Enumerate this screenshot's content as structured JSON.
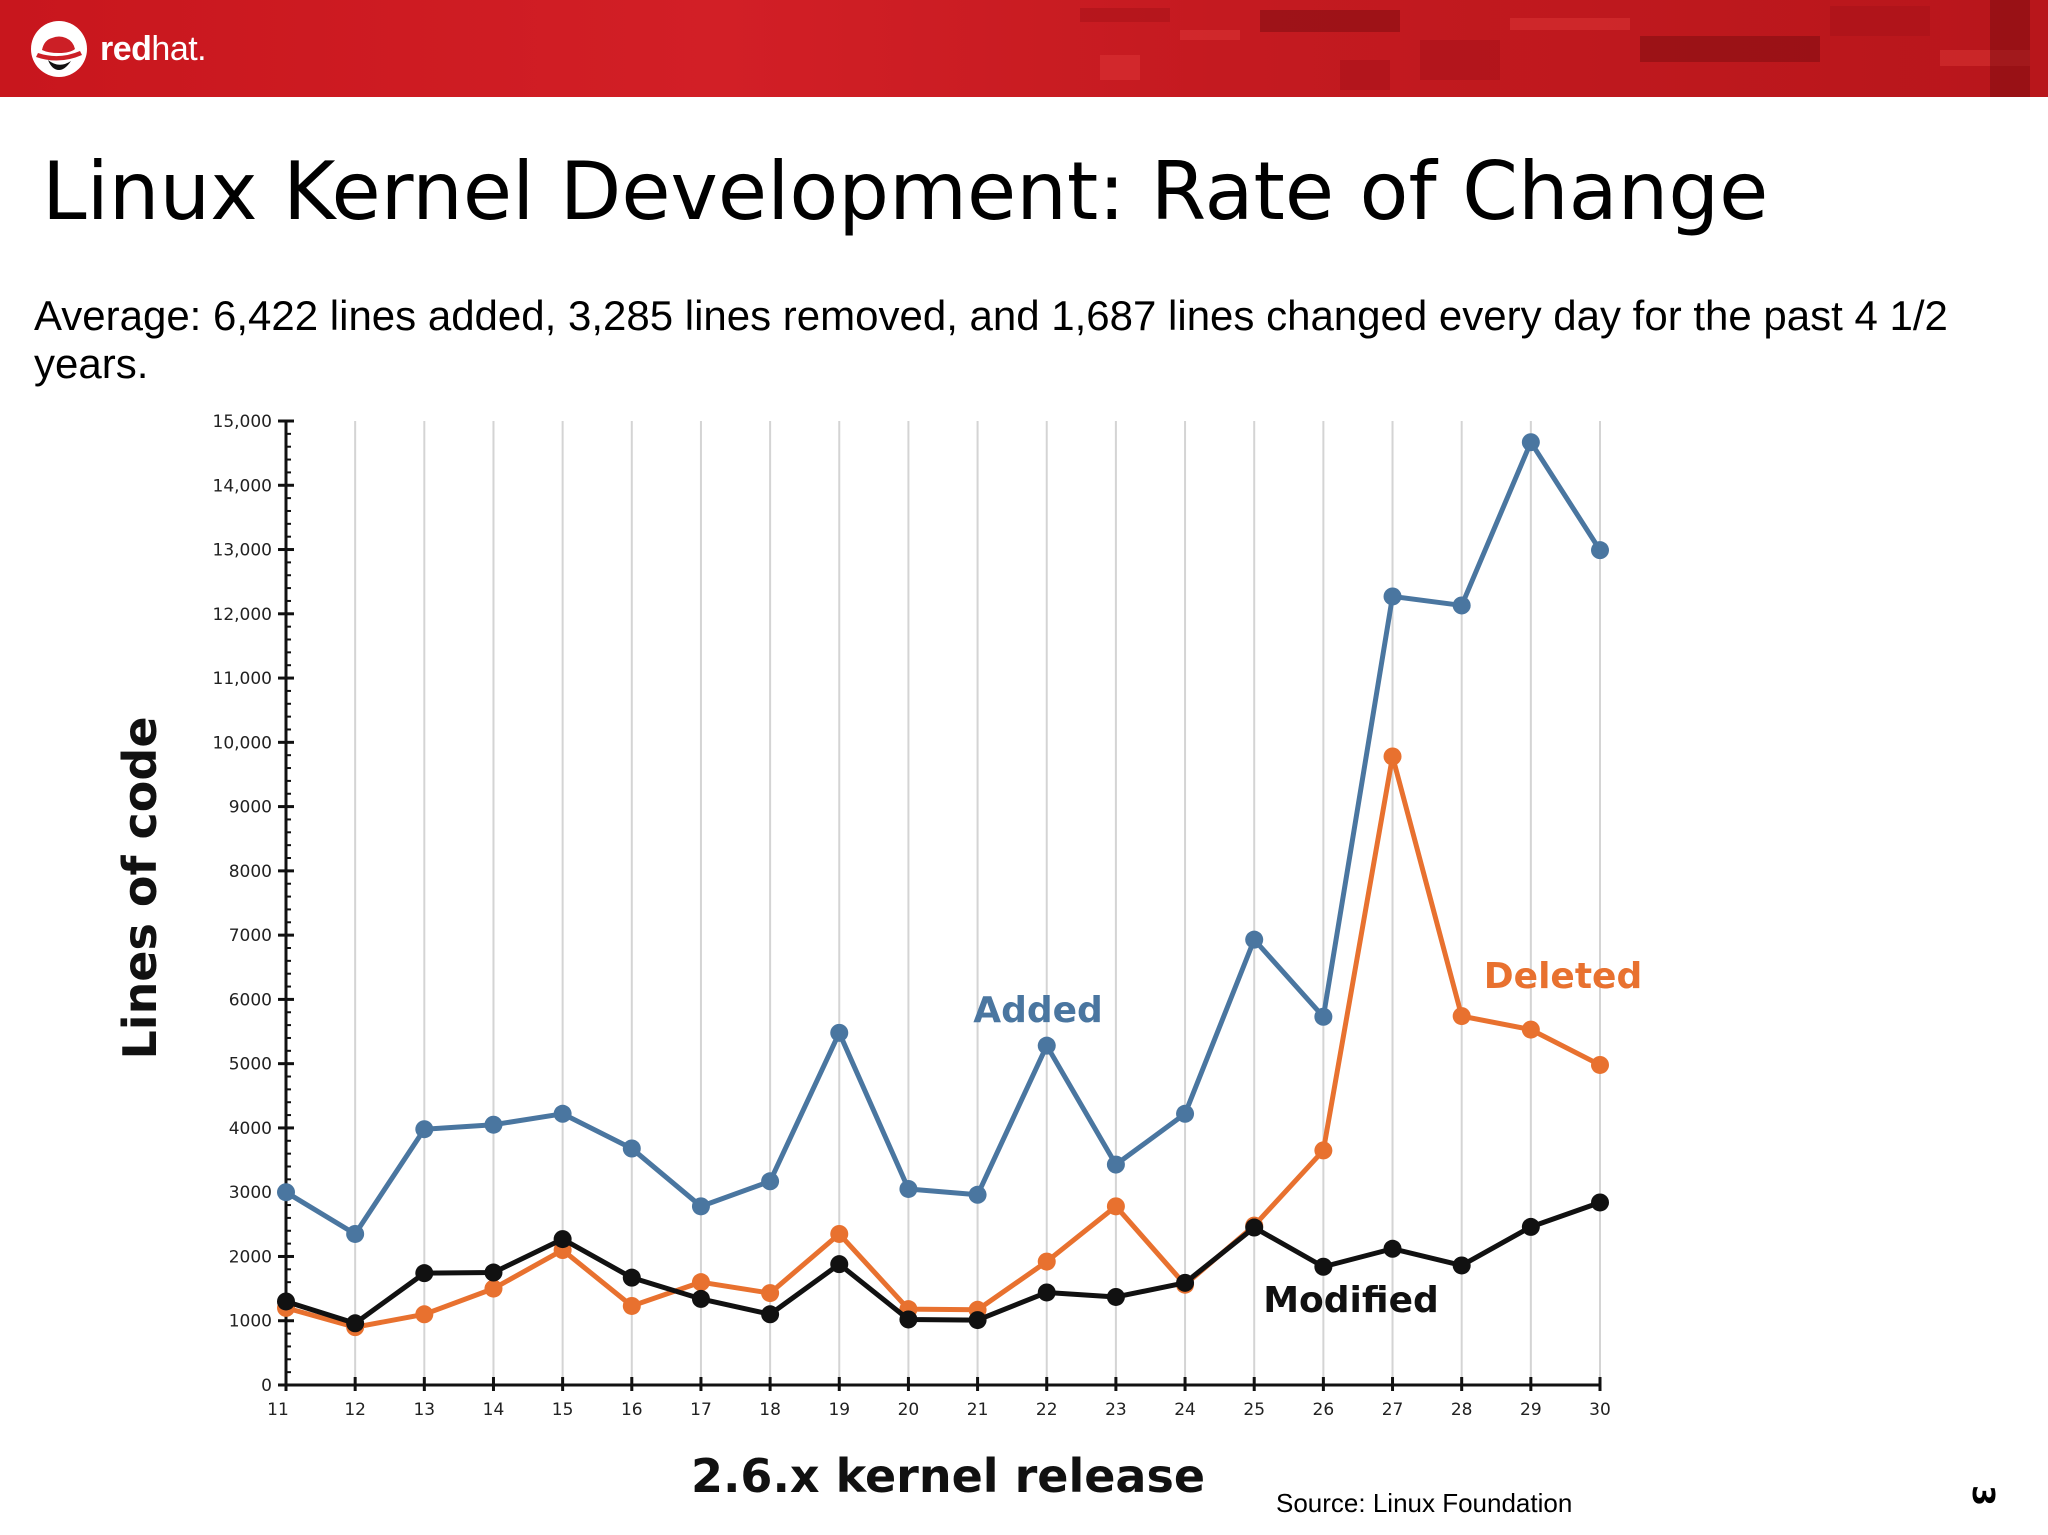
{
  "header": {
    "brand_bold": "red",
    "brand_light": "hat.",
    "brand_color": "#cc1f26",
    "logo_icon": "redhat-shadowman-icon"
  },
  "slide": {
    "title": "Linux Kernel Development: Rate of Change",
    "subtitle": "Average: 6,422 lines added, 3,285 lines removed, and 1,687 lines changed every day for the past 4 1/2 years.",
    "source": "Source:  Linux Foundation",
    "page_number": "3"
  },
  "chart_data": {
    "type": "line",
    "title": "",
    "xlabel": "2.6.x kernel release",
    "ylabel": "Lines of code",
    "x": [
      11,
      12,
      13,
      14,
      15,
      16,
      17,
      18,
      19,
      20,
      21,
      22,
      23,
      24,
      25,
      26,
      27,
      28,
      29,
      30
    ],
    "ylim": [
      0,
      15000
    ],
    "yticks": [
      0,
      1000,
      2000,
      3000,
      4000,
      5000,
      6000,
      7000,
      8000,
      9000,
      10000,
      11000,
      12000,
      13000,
      14000,
      15000
    ],
    "ytick_labels": [
      "0",
      "1000",
      "2000",
      "3000",
      "4000",
      "5000",
      "6000",
      "7000",
      "8000",
      "9000",
      "10,000",
      "11,000",
      "12,000",
      "13,000",
      "14,000",
      "15,000"
    ],
    "grid": "vertical",
    "series": [
      {
        "name": "Added",
        "color": "#4a76a0",
        "values": [
          3000,
          2350,
          3980,
          4050,
          4220,
          3680,
          2780,
          3170,
          5480,
          3050,
          2960,
          5280,
          3430,
          4220,
          6930,
          5730,
          12270,
          12130,
          14670,
          12990
        ]
      },
      {
        "name": "Deleted",
        "color": "#e8712f",
        "values": [
          1200,
          900,
          1100,
          1500,
          2100,
          1230,
          1600,
          1430,
          2350,
          1180,
          1170,
          1920,
          2780,
          1560,
          2480,
          3650,
          9780,
          5740,
          5530,
          4980
        ]
      },
      {
        "name": "Modified",
        "color": "#111111",
        "values": [
          1300,
          960,
          1740,
          1750,
          2270,
          1670,
          1340,
          1100,
          1880,
          1020,
          1010,
          1440,
          1370,
          1590,
          2450,
          1840,
          2120,
          1860,
          2460,
          2840
        ]
      }
    ]
  }
}
